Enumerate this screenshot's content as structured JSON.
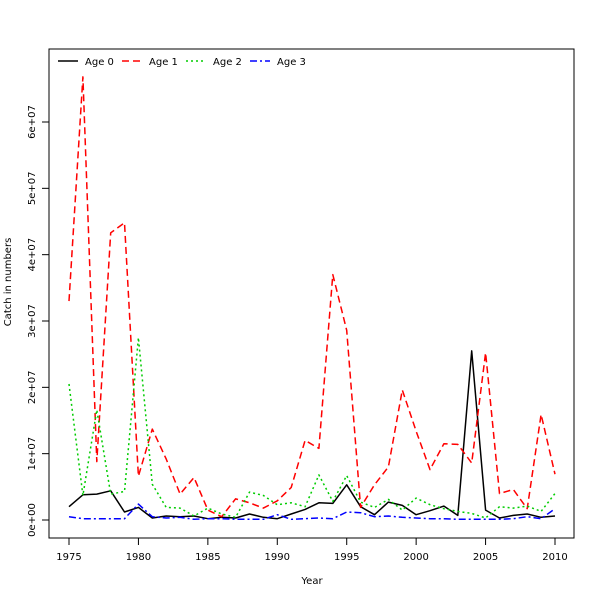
{
  "chart_data": {
    "type": "line",
    "title": "",
    "xlabel": "Year",
    "ylabel": "Catch in numbers",
    "xlim": [
      1975,
      2010
    ],
    "ylim": [
      0,
      68000000
    ],
    "x_ticks": [
      1975,
      1980,
      1985,
      1990,
      1995,
      2000,
      2005,
      2010
    ],
    "y_ticks": [
      0,
      10000000,
      20000000,
      30000000,
      40000000,
      50000000,
      60000000
    ],
    "y_tick_labels": [
      "0e+00",
      "1e+07",
      "2e+07",
      "3e+07",
      "4e+07",
      "5e+07",
      "6e+07"
    ],
    "legend_position": "top-left",
    "x": [
      1975,
      1976,
      1977,
      1978,
      1979,
      1980,
      1981,
      1982,
      1983,
      1984,
      1985,
      1986,
      1987,
      1988,
      1989,
      1990,
      1991,
      1992,
      1993,
      1994,
      1995,
      1996,
      1997,
      1998,
      1999,
      2000,
      2001,
      2002,
      2003,
      2004,
      2005,
      2006,
      2007,
      2008,
      2009,
      2010
    ],
    "series": [
      {
        "name": "Age 0",
        "color": "#000000",
        "dash": "solid",
        "values": [
          2000000,
          3800000,
          3900000,
          4400000,
          1200000,
          1900000,
          300000,
          600000,
          500000,
          600000,
          200000,
          400000,
          300000,
          900000,
          400000,
          200000,
          900000,
          1600000,
          2600000,
          2500000,
          5300000,
          2000000,
          800000,
          2700000,
          2200000,
          800000,
          1400000,
          2100000,
          700000,
          25500000,
          1500000,
          300000,
          700000,
          900000,
          400000,
          600000
        ]
      },
      {
        "name": "Age 1",
        "color": "#ff0000",
        "dash": "dashed",
        "values": [
          33000000,
          66800000,
          8800000,
          43300000,
          44800000,
          6600000,
          13700000,
          9200000,
          3900000,
          6400000,
          1500000,
          500000,
          3200000,
          2600000,
          1800000,
          2900000,
          4900000,
          12000000,
          10800000,
          37000000,
          28600000,
          1900000,
          5300000,
          8000000,
          19600000,
          13400000,
          7600000,
          11500000,
          11400000,
          8600000,
          25200000,
          4000000,
          4600000,
          1700000,
          15900000,
          6900000
        ]
      },
      {
        "name": "Age 2",
        "color": "#00cc00",
        "dash": "dotted",
        "values": [
          20500000,
          3700000,
          16600000,
          3900000,
          4300000,
          27500000,
          5400000,
          1900000,
          1800000,
          600000,
          1800000,
          900000,
          400000,
          4200000,
          3700000,
          2300000,
          2600000,
          2000000,
          6800000,
          2800000,
          6700000,
          2700000,
          1900000,
          3100000,
          1500000,
          3300000,
          2300000,
          1700000,
          1300000,
          1000000,
          300000,
          2000000,
          1800000,
          2100000,
          1300000,
          4000000
        ]
      },
      {
        "name": "Age 3",
        "color": "#0000ff",
        "dash": "dashdot",
        "values": [
          500000,
          200000,
          200000,
          200000,
          200000,
          2400000,
          500000,
          300000,
          400000,
          100000,
          200000,
          200000,
          100000,
          100000,
          100000,
          800000,
          100000,
          200000,
          300000,
          200000,
          1200000,
          1100000,
          500000,
          600000,
          400000,
          300000,
          200000,
          200000,
          100000,
          100000,
          100000,
          100000,
          200000,
          500000,
          200000,
          1700000
        ]
      }
    ]
  }
}
